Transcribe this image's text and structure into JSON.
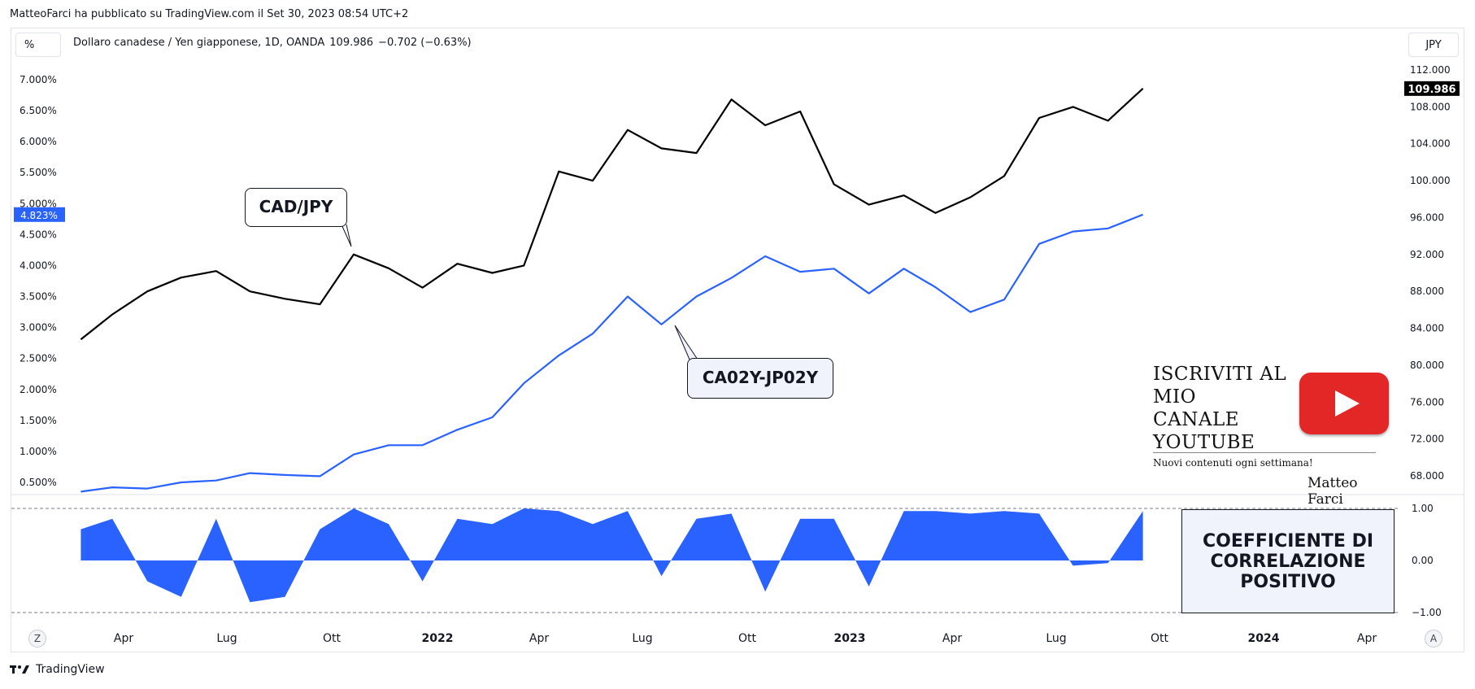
{
  "header": {
    "text": "MatteoFarci ha pubblicato su TradingView.com il Set 30, 2023 08:54 UTC+2"
  },
  "toolbar": {
    "scale_button": "%",
    "currency_button": "JPY"
  },
  "legend": {
    "symbol_name": "Dollaro canadese / Yen giapponese, 1D, OANDA",
    "last": "109.986",
    "change": "−0.702 (−0.63%)"
  },
  "callouts": {
    "cadjpy": "CAD/JPY",
    "spread": "CA02Y-JP02Y"
  },
  "promo": {
    "title_lines": [
      "ISCRIVITI AL",
      "MIO",
      "CANALE",
      "YOUTUBE"
    ],
    "subtitle": "Nuovi contenuti ogni settimana!",
    "signature": "Matteo Farci",
    "icon": "youtube-play-icon"
  },
  "correlation_box": {
    "lines": [
      "COEFFICIENTE DI",
      "CORRELAZIONE",
      "POSITIVO"
    ]
  },
  "footer": {
    "brand": "TradingView",
    "left_button": "Z",
    "right_button": "A"
  },
  "colors": {
    "price_line": "#000000",
    "spread_line": "#2962ff",
    "correlation_fill": "#2962ff",
    "badge_blue": "#2962ff",
    "badge_black": "#000000"
  },
  "chart_data": [
    {
      "type": "line",
      "series": [
        {
          "name": "CAD/JPY",
          "x": [
            "2021-02",
            "2021-03",
            "2021-04",
            "2021-05",
            "2021-06",
            "2021-07",
            "2021-08",
            "2021-09",
            "2021-10",
            "2021-11",
            "2021-12",
            "2022-01",
            "2022-02",
            "2022-03",
            "2022-04",
            "2022-05",
            "2022-06",
            "2022-07",
            "2022-08",
            "2022-09",
            "2022-10",
            "2022-11",
            "2022-12",
            "2023-01",
            "2023-02",
            "2023-03",
            "2023-04",
            "2023-05",
            "2023-06",
            "2023-07",
            "2023-08",
            "2023-09"
          ],
          "values": [
            82.8,
            85.5,
            88.0,
            89.5,
            90.2,
            88.0,
            87.2,
            86.6,
            92.0,
            90.5,
            88.4,
            91.0,
            90.0,
            90.8,
            101.0,
            100.0,
            105.5,
            103.5,
            103.0,
            108.8,
            106.0,
            107.5,
            99.6,
            97.4,
            98.4,
            96.5,
            98.2,
            100.5,
            106.8,
            108.0,
            106.5,
            109.986
          ]
        },
        {
          "name": "CA02Y-JP02Y",
          "x": [
            "2021-02",
            "2021-03",
            "2021-04",
            "2021-05",
            "2021-06",
            "2021-07",
            "2021-08",
            "2021-09",
            "2021-10",
            "2021-11",
            "2021-12",
            "2022-01",
            "2022-02",
            "2022-03",
            "2022-04",
            "2022-05",
            "2022-06",
            "2022-07",
            "2022-08",
            "2022-09",
            "2022-10",
            "2022-11",
            "2022-12",
            "2023-01",
            "2023-02",
            "2023-03",
            "2023-04",
            "2023-05",
            "2023-06",
            "2023-07",
            "2023-08",
            "2023-09"
          ],
          "values": [
            0.35,
            0.42,
            0.4,
            0.5,
            0.53,
            0.65,
            0.62,
            0.6,
            0.95,
            1.1,
            1.1,
            1.35,
            1.55,
            2.1,
            2.55,
            2.9,
            3.5,
            3.05,
            3.5,
            3.8,
            4.15,
            3.9,
            3.95,
            3.55,
            3.95,
            3.65,
            3.25,
            3.45,
            4.35,
            4.55,
            4.6,
            4.823
          ]
        }
      ],
      "xlabel": "",
      "y_right": {
        "unit": "JPY",
        "min": 66,
        "max": 113,
        "ticks": [
          "112.000",
          "108.000",
          "104.000",
          "100.000",
          "96.000",
          "92.000",
          "88.000",
          "84.000",
          "80.000",
          "76.000",
          "72.000",
          "68.000"
        ]
      },
      "y_left": {
        "unit": "%",
        "min": 0.33,
        "max": 7.17,
        "ticks": [
          "7.000%",
          "6.500%",
          "6.000%",
          "5.500%",
          "5.000%",
          "4.500%",
          "4.000%",
          "3.500%",
          "3.000%",
          "2.500%",
          "2.000%",
          "1.500%",
          "1.000%",
          "0.500%"
        ]
      },
      "last_value_labels": {
        "price": "109.986",
        "spread": "4.823%"
      },
      "x_ticks": [
        "Apr",
        "Lug",
        "Ott",
        "2022",
        "Apr",
        "Lug",
        "Ott",
        "2023",
        "Apr",
        "Lug",
        "Ott",
        "2024",
        "Apr"
      ]
    },
    {
      "type": "area",
      "series": [
        {
          "name": "",
          "x": [
            "2021-02",
            "2021-03",
            "2021-04",
            "2021-05",
            "2021-06",
            "2021-07",
            "2021-08",
            "2021-09",
            "2021-10",
            "2021-11",
            "2021-12",
            "2022-01",
            "2022-02",
            "2022-03",
            "2022-04",
            "2022-05",
            "2022-06",
            "2022-07",
            "2022-08",
            "2022-09",
            "2022-10",
            "2022-11",
            "2022-12",
            "2023-01",
            "2023-02",
            "2023-03",
            "2023-04",
            "2023-05",
            "2023-06",
            "2023-07",
            "2023-08",
            "2023-09"
          ],
          "values": [
            0.6,
            0.8,
            -0.4,
            -0.7,
            0.8,
            -0.8,
            -0.7,
            0.6,
            1.0,
            0.7,
            -0.4,
            0.8,
            0.7,
            1.0,
            0.95,
            0.7,
            0.95,
            -0.3,
            0.8,
            0.9,
            -0.6,
            0.8,
            0.8,
            -0.5,
            0.95,
            0.95,
            0.9,
            0.95,
            0.9,
            -0.1,
            -0.05,
            0.95
          ]
        }
      ],
      "ylim": [
        -1,
        1
      ],
      "y_ticks": [
        "1.00",
        "0.00",
        "−1.00"
      ]
    }
  ]
}
